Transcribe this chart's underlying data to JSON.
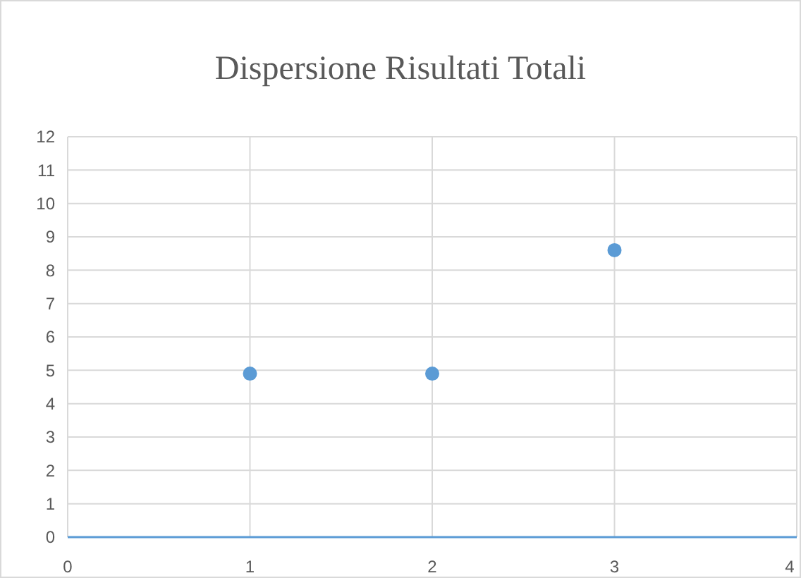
{
  "chart_data": {
    "type": "scatter",
    "title": "Dispersione Risultati Totali",
    "x": [
      1,
      2,
      3
    ],
    "series": [
      {
        "color": "#5b9bd5",
        "values": [
          4.9,
          4.9,
          8.6
        ]
      }
    ],
    "xlim": [
      0,
      4
    ],
    "xticks": [
      0,
      1,
      2,
      3,
      4
    ],
    "ylim": [
      0,
      12
    ],
    "yticks": [
      0,
      1,
      2,
      3,
      4,
      5,
      6,
      7,
      8,
      9,
      10,
      11,
      12
    ],
    "grid": true,
    "marker": "circle"
  }
}
